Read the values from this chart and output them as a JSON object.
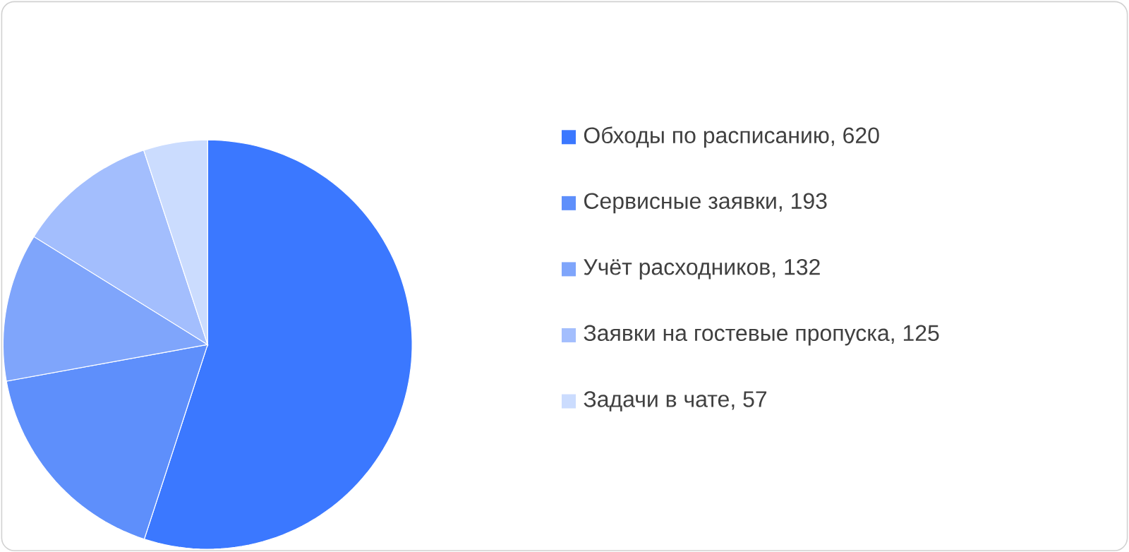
{
  "chart_data": {
    "type": "pie",
    "categories": [
      "Обходы по расписанию, 620",
      "Сервисные заявки, 193",
      "Учёт расходников, 132",
      "Заявки на гостевые пропуска, 125",
      "Задачи в чате, 57"
    ],
    "values": [
      620,
      193,
      132,
      125,
      57
    ],
    "colors": [
      "#3b78ff",
      "#5e8ffb",
      "#7fa5fb",
      "#a3befd",
      "#cbdcfe"
    ],
    "legend": "right"
  }
}
